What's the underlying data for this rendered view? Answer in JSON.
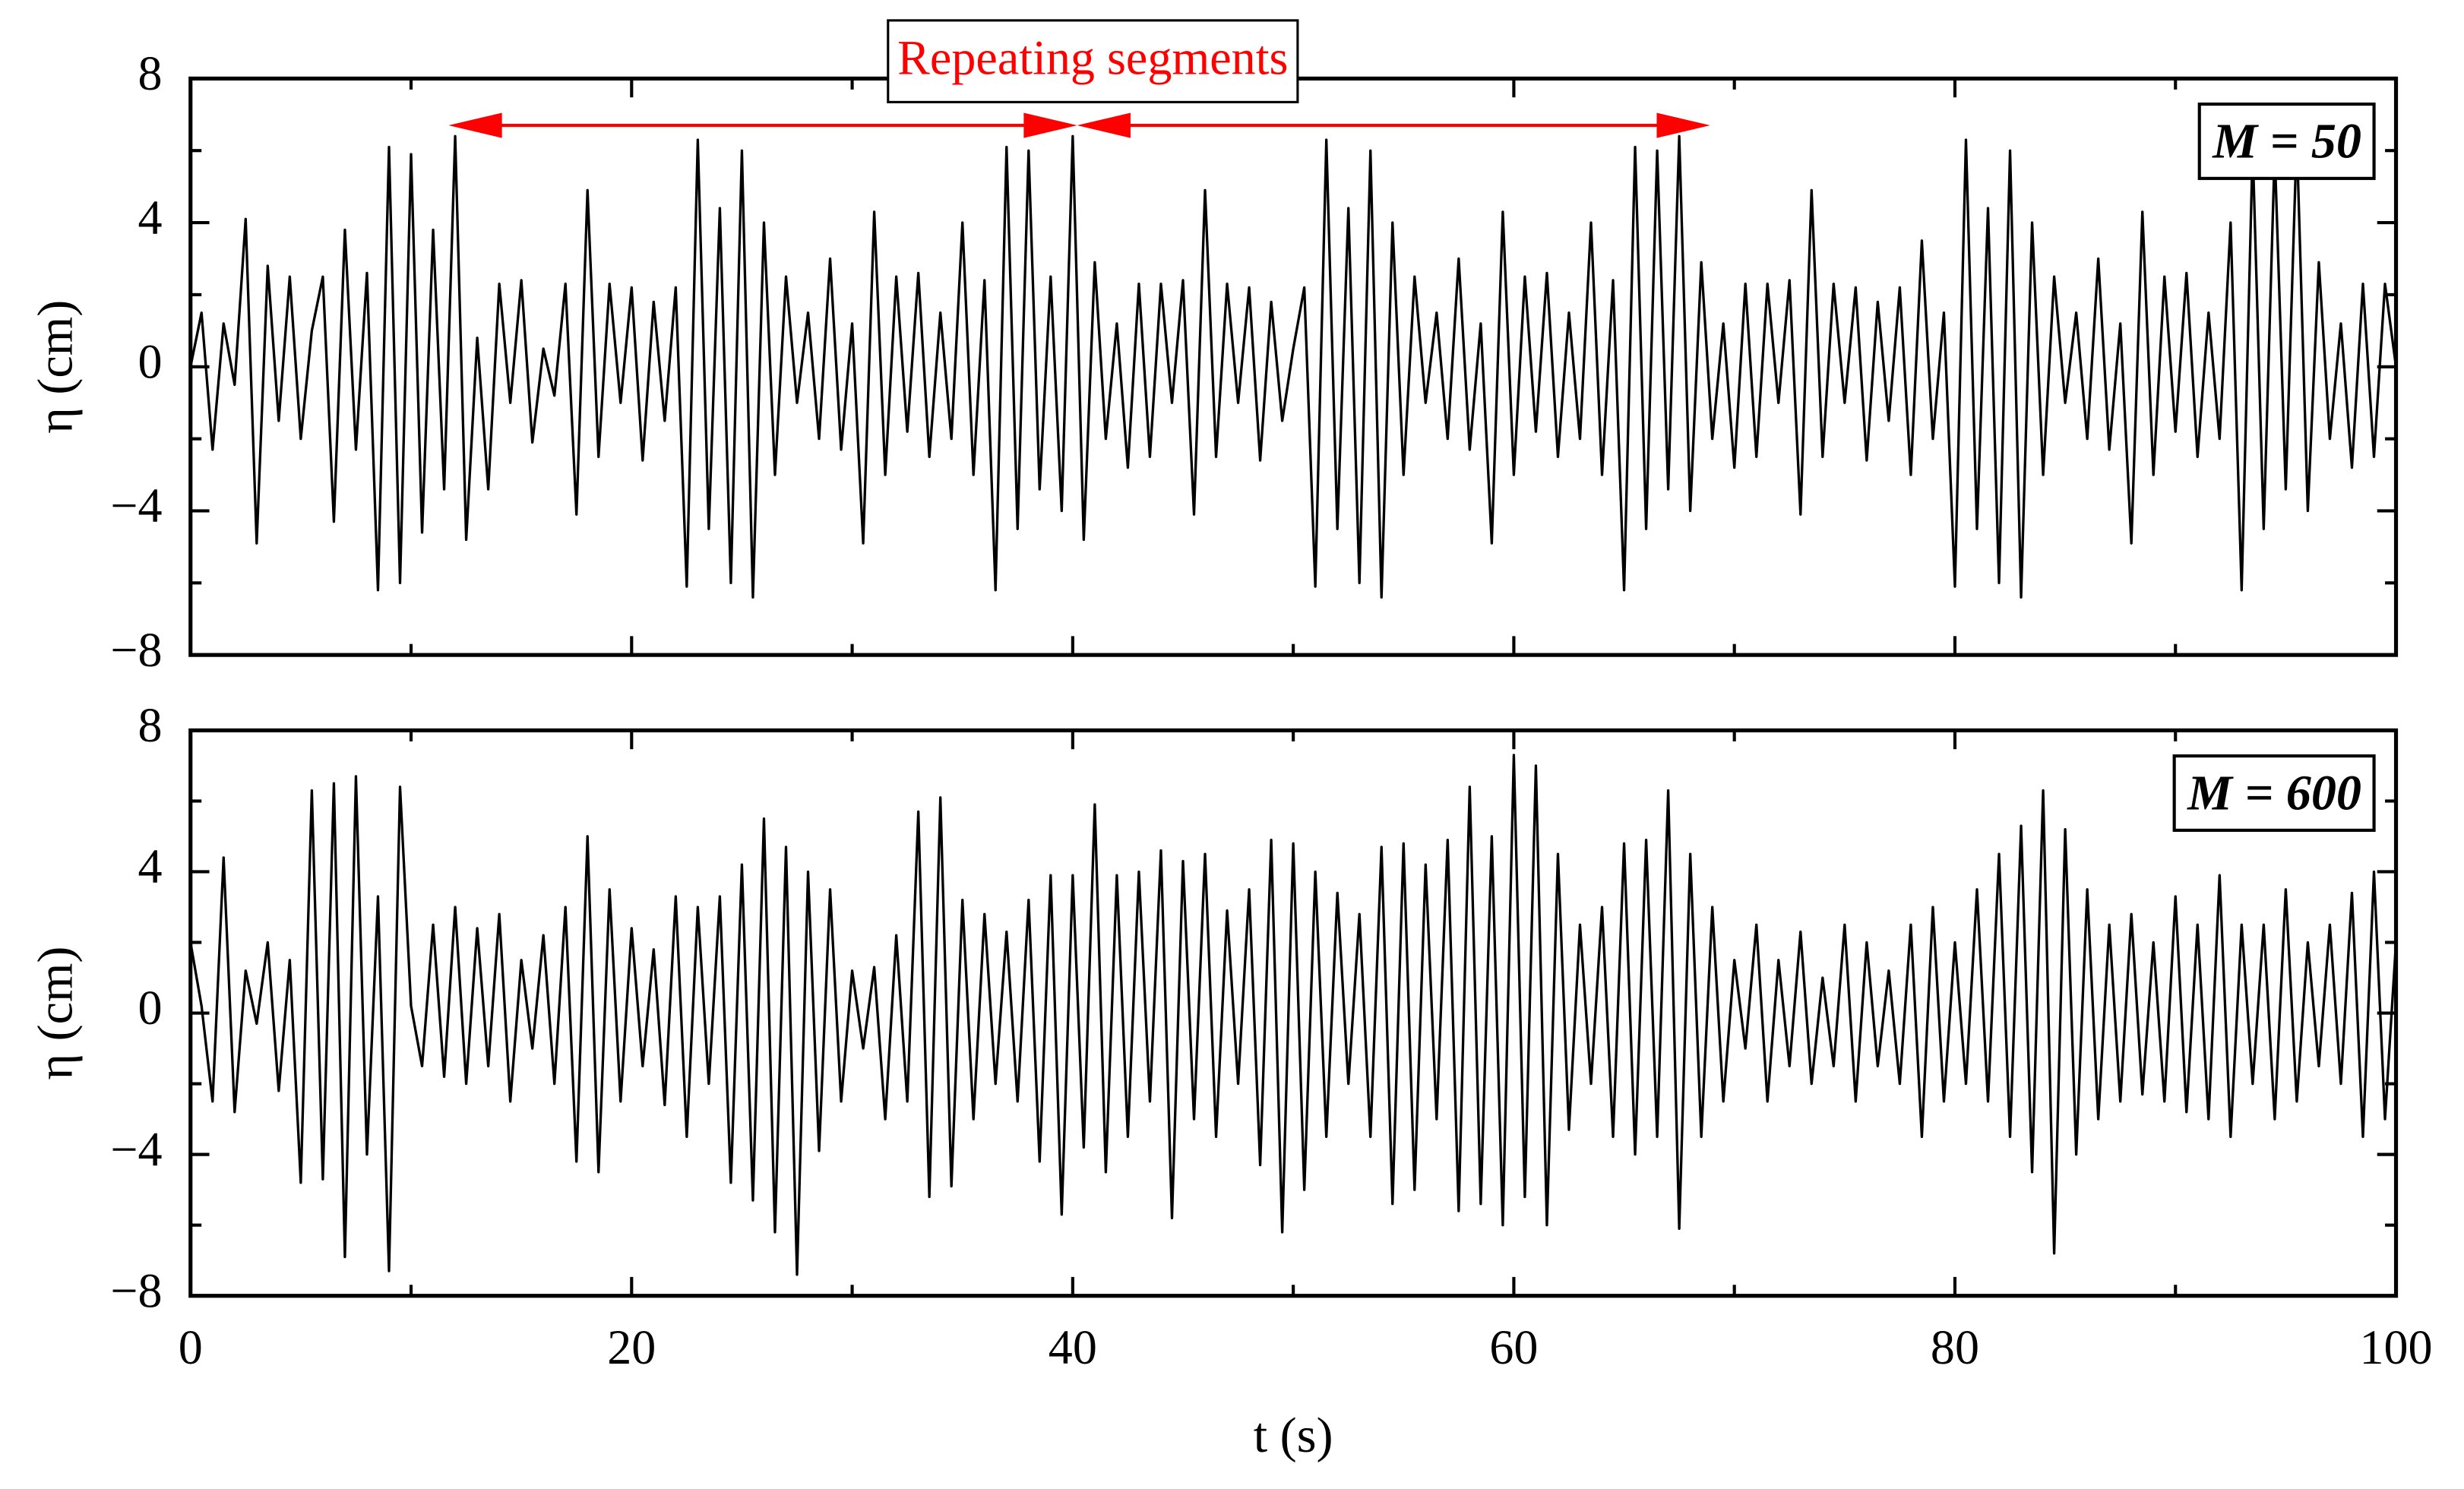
{
  "chart_data": [
    {
      "type": "line",
      "ylabel": "η (cm)",
      "annotation": "M = 50",
      "segment_label": "Repeating segments",
      "arrows": [
        {
          "x": [
            11.7,
            40.2
          ],
          "y": 6.7
        },
        {
          "x": [
            40.2,
            68.9
          ],
          "y": 6.7
        }
      ],
      "arrow_color": "#ff0000",
      "color": "#000000",
      "xlim": [
        0,
        100
      ],
      "ylim": [
        -8,
        8
      ],
      "show_xtick_labels": false,
      "xticks": [
        0,
        20,
        40,
        60,
        80,
        100
      ],
      "xticks_minor": [
        10,
        30,
        50,
        70,
        90
      ],
      "yticks": [
        {
          "value": -8,
          "label": "−8"
        },
        {
          "value": -4,
          "label": "−4"
        },
        0,
        4,
        8
      ],
      "yticks_minor": [
        -6,
        -2,
        2,
        6
      ],
      "x": [
        0,
        0.5,
        1,
        1.5,
        2,
        2.5,
        3,
        3.5,
        4,
        4.5,
        5,
        5.5,
        6,
        6.5,
        7,
        7.5,
        8,
        8.5,
        9,
        9.5,
        10,
        10.5,
        11,
        11.5,
        12,
        12.5,
        13,
        13.5,
        14,
        14.5,
        15,
        15.5,
        16,
        16.5,
        17,
        17.5,
        18,
        18.5,
        19,
        19.5,
        20,
        20.5,
        21,
        21.5,
        22,
        22.5,
        23,
        23.5,
        24,
        24.5,
        25,
        25.5,
        26,
        26.5,
        27,
        27.5,
        28,
        28.5,
        29,
        29.5,
        30,
        30.5,
        31,
        31.5,
        32,
        32.5,
        33,
        33.5,
        34,
        34.5,
        35,
        35.5,
        36,
        36.5,
        37,
        37.5,
        38,
        38.5,
        39,
        39.5,
        40,
        40.5,
        41,
        41.5,
        42,
        42.5,
        43,
        43.5,
        44,
        44.5,
        45,
        45.5,
        46,
        46.5,
        47,
        47.5,
        48,
        48.5,
        49,
        49.5,
        50,
        50.5,
        51,
        51.5,
        52,
        52.5,
        53,
        53.5,
        54,
        54.5,
        55,
        55.5,
        56,
        56.5,
        57,
        57.5,
        58,
        58.5,
        59,
        59.5,
        60,
        60.5,
        61,
        61.5,
        62,
        62.5,
        63,
        63.5,
        64,
        64.5,
        65,
        65.5,
        66,
        66.5,
        67,
        67.5,
        68,
        68.5,
        69,
        69.5,
        70,
        70.5,
        71,
        71.5,
        72,
        72.5,
        73,
        73.5,
        74,
        74.5,
        75,
        75.5,
        76,
        76.5,
        77,
        77.5,
        78,
        78.5,
        79,
        79.5,
        80,
        80.5,
        81,
        81.5,
        82,
        82.5,
        83,
        83.5,
        84,
        84.5,
        85,
        85.5,
        86,
        86.5,
        87,
        87.5,
        88,
        88.5,
        89,
        89.5,
        90,
        90.5,
        91,
        91.5,
        92,
        92.5,
        93,
        93.5,
        94,
        94.5,
        95,
        95.5,
        96,
        96.5,
        97,
        97.5,
        98,
        98.5,
        99,
        99.5,
        100
      ],
      "values": [
        0,
        1.5,
        -2.3,
        1.2,
        -0.5,
        4.1,
        -4.9,
        2.8,
        -1.5,
        2.5,
        -2.0,
        1.0,
        2.5,
        -4.3,
        3.8,
        -2.3,
        2.6,
        -6.2,
        6.1,
        -6.0,
        5.9,
        -4.6,
        3.8,
        -3.4,
        6.4,
        -4.8,
        0.8,
        -3.4,
        2.3,
        -1.0,
        2.4,
        -2.1,
        0.5,
        -0.8,
        2.3,
        -4.1,
        4.9,
        -2.5,
        2.3,
        -1.0,
        2.2,
        -2.6,
        1.8,
        -1.5,
        2.2,
        -6.1,
        6.3,
        -4.5,
        4.4,
        -6.0,
        6.0,
        -6.4,
        4.0,
        -3.0,
        2.5,
        -1.0,
        1.5,
        -2.0,
        3.0,
        -2.3,
        1.2,
        -4.9,
        4.3,
        -3.0,
        2.5,
        -1.8,
        2.6,
        -2.5,
        1.5,
        -2.0,
        4.0,
        -3.0,
        2.4,
        -6.2,
        6.1,
        -4.5,
        6.0,
        -3.4,
        2.5,
        -4.0,
        6.4,
        -4.8,
        2.9,
        -2.0,
        1.2,
        -2.8,
        2.3,
        -2.5,
        2.3,
        -1.0,
        2.4,
        -4.1,
        4.9,
        -2.5,
        2.3,
        -1.0,
        2.2,
        -2.6,
        1.8,
        -1.5,
        0.5,
        2.2,
        -6.1,
        6.3,
        -4.5,
        4.4,
        -6.0,
        6.0,
        -6.4,
        4.0,
        -3.0,
        2.5,
        -1.0,
        1.5,
        -2.0,
        3.0,
        -2.3,
        1.2,
        -4.9,
        4.3,
        -3.0,
        2.5,
        -1.8,
        2.6,
        -2.5,
        1.5,
        -2.0,
        4.0,
        -3.0,
        2.4,
        -6.2,
        6.1,
        -4.5,
        6.0,
        -3.4,
        6.4,
        -4.0,
        2.9,
        -2.0,
        1.2,
        -2.8,
        2.3,
        -2.5,
        2.3,
        -1.0,
        2.4,
        -4.1,
        4.9,
        -2.5,
        2.3,
        -1.0,
        2.2,
        -2.6,
        1.8,
        -1.5,
        2.2,
        -3.0,
        3.5,
        -2.0,
        1.5,
        -6.1,
        6.3,
        -4.5,
        4.4,
        -6.0,
        6.0,
        -6.4,
        4.0,
        -3.0,
        2.5,
        -1.0,
        1.5,
        -2.0,
        3.0,
        -2.3,
        1.2,
        -4.9,
        4.3,
        -3.0,
        2.5,
        -1.8,
        2.6,
        -2.5,
        1.5,
        -2.0,
        4.0,
        -6.2,
        6.1,
        -4.5,
        6.0,
        -3.4,
        6.4,
        -4.0,
        2.9,
        -2.0,
        1.2,
        -2.8,
        2.3,
        -2.5,
        2.3,
        0
      ]
    },
    {
      "type": "line",
      "ylabel": "η (cm)",
      "xlabel": "t (s)",
      "annotation": "M = 600",
      "color": "#000000",
      "xlim": [
        0,
        100
      ],
      "ylim": [
        -8,
        8
      ],
      "show_xtick_labels": true,
      "xticks": [
        0,
        20,
        40,
        60,
        80,
        100
      ],
      "xticks_minor": [
        10,
        30,
        50,
        70,
        90
      ],
      "yticks": [
        {
          "value": -8,
          "label": "−8"
        },
        {
          "value": -4,
          "label": "−4"
        },
        0,
        4,
        8
      ],
      "yticks_minor": [
        -6,
        -2,
        2,
        6
      ],
      "x": [
        0,
        0.5,
        1,
        1.5,
        2,
        2.5,
        3,
        3.5,
        4,
        4.5,
        5,
        5.5,
        6,
        6.5,
        7,
        7.5,
        8,
        8.5,
        9,
        9.5,
        10,
        10.5,
        11,
        11.5,
        12,
        12.5,
        13,
        13.5,
        14,
        14.5,
        15,
        15.5,
        16,
        16.5,
        17,
        17.5,
        18,
        18.5,
        19,
        19.5,
        20,
        20.5,
        21,
        21.5,
        22,
        22.5,
        23,
        23.5,
        24,
        24.5,
        25,
        25.5,
        26,
        26.5,
        27,
        27.5,
        28,
        28.5,
        29,
        29.5,
        30,
        30.5,
        31,
        31.5,
        32,
        32.5,
        33,
        33.5,
        34,
        34.5,
        35,
        35.5,
        36,
        36.5,
        37,
        37.5,
        38,
        38.5,
        39,
        39.5,
        40,
        40.5,
        41,
        41.5,
        42,
        42.5,
        43,
        43.5,
        44,
        44.5,
        45,
        45.5,
        46,
        46.5,
        47,
        47.5,
        48,
        48.5,
        49,
        49.5,
        50,
        50.5,
        51,
        51.5,
        52,
        52.5,
        53,
        53.5,
        54,
        54.5,
        55,
        55.5,
        56,
        56.5,
        57,
        57.5,
        58,
        58.5,
        59,
        59.5,
        60,
        60.5,
        61,
        61.5,
        62,
        62.5,
        63,
        63.5,
        64,
        64.5,
        65,
        65.5,
        66,
        66.5,
        67,
        67.5,
        68,
        68.5,
        69,
        69.5,
        70,
        70.5,
        71,
        71.5,
        72,
        72.5,
        73,
        73.5,
        74,
        74.5,
        75,
        75.5,
        76,
        76.5,
        77,
        77.5,
        78,
        78.5,
        79,
        79.5,
        80,
        80.5,
        81,
        81.5,
        82,
        82.5,
        83,
        83.5,
        84,
        84.5,
        85,
        85.5,
        86,
        86.5,
        87,
        87.5,
        88,
        88.5,
        89,
        89.5,
        90,
        90.5,
        91,
        91.5,
        92,
        92.5,
        93,
        93.5,
        94,
        94.5,
        95,
        95.5,
        96,
        96.5,
        97,
        97.5,
        98,
        98.5,
        99,
        99.5,
        100
      ],
      "values": [
        2.0,
        0.2,
        -2.5,
        4.4,
        -2.8,
        1.2,
        -0.3,
        2.0,
        -2.2,
        1.5,
        -4.8,
        6.3,
        -4.7,
        6.5,
        -6.9,
        6.7,
        -4.0,
        3.3,
        -7.3,
        6.4,
        0.2,
        -1.5,
        2.5,
        -1.8,
        3.0,
        -2.0,
        2.4,
        -1.5,
        2.8,
        -2.5,
        1.5,
        -1.0,
        2.2,
        -2.0,
        3.0,
        -4.2,
        5.0,
        -4.5,
        3.5,
        -2.5,
        2.4,
        -1.5,
        1.8,
        -2.6,
        3.3,
        -3.5,
        3.0,
        -2.0,
        3.3,
        -4.8,
        4.2,
        -5.3,
        5.5,
        -6.2,
        4.7,
        -7.4,
        4.0,
        -3.9,
        3.5,
        -2.5,
        1.2,
        -1.0,
        1.3,
        -3.0,
        2.2,
        -2.5,
        5.7,
        -5.2,
        6.1,
        -4.9,
        3.2,
        -3.0,
        2.8,
        -2.0,
        2.3,
        -2.5,
        3.2,
        -4.2,
        3.9,
        -5.7,
        3.9,
        -3.8,
        5.9,
        -4.5,
        3.9,
        -3.5,
        4.0,
        -2.5,
        4.6,
        -5.8,
        4.3,
        -3.0,
        4.5,
        -3.5,
        2.9,
        -2.0,
        3.5,
        -4.3,
        4.9,
        -6.2,
        4.8,
        -5.0,
        4.0,
        -3.5,
        3.4,
        -2.0,
        2.8,
        -3.5,
        4.7,
        -5.4,
        4.8,
        -5.0,
        4.2,
        -3.0,
        4.9,
        -5.6,
        6.4,
        -5.4,
        5.0,
        -6.0,
        7.3,
        -5.2,
        7.0,
        -6.0,
        4.5,
        -3.3,
        2.5,
        -2.0,
        3.0,
        -3.5,
        4.8,
        -4.0,
        4.9,
        -3.5,
        6.3,
        -6.1,
        4.5,
        -3.5,
        3.0,
        -2.5,
        1.5,
        -1.0,
        2.5,
        -2.5,
        1.5,
        -1.5,
        2.3,
        -2.0,
        1.0,
        -1.5,
        2.5,
        -2.5,
        2.0,
        -1.5,
        1.2,
        -2.0,
        2.5,
        -3.5,
        3.0,
        -2.5,
        2.0,
        -2.0,
        3.5,
        -2.5,
        4.5,
        -3.5,
        5.3,
        -4.5,
        6.3,
        -6.8,
        5.2,
        -4.0,
        3.5,
        -3.0,
        2.5,
        -2.5,
        2.8,
        -2.3,
        2.0,
        -2.5,
        3.3,
        -2.8,
        2.5,
        -3.0,
        3.9,
        -3.5,
        2.5,
        -2.0,
        2.5,
        -3.0,
        3.5,
        -2.5,
        2.0,
        -1.5,
        2.5,
        -2.0,
        3.4,
        -3.5,
        4.0,
        -3.0,
        2.0
      ]
    }
  ]
}
